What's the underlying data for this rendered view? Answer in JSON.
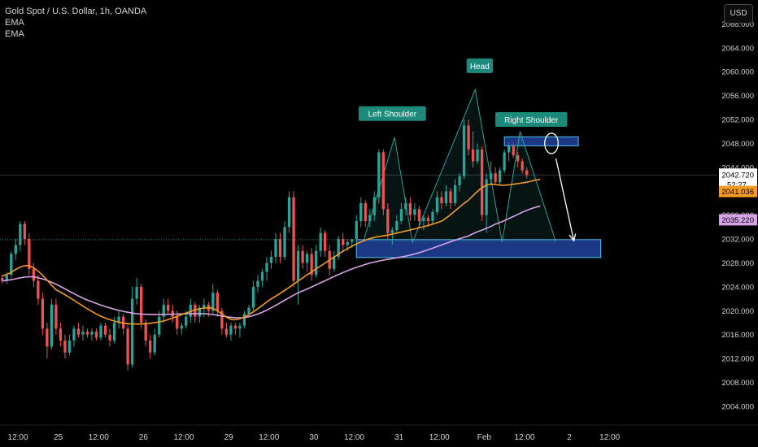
{
  "header": {
    "symbol": "Gold Spot / U.S. Dollar, 1h, OANDA",
    "indicators": [
      "EMA",
      "EMA"
    ],
    "currency_button": "USD"
  },
  "price_labels": {
    "last_price": "2042.720",
    "countdown": "52:27",
    "ema_fast": "2041.036",
    "ema_slow": "2035.220"
  },
  "colors": {
    "up": "#26a69a",
    "down": "#ef5350",
    "ema_fast": "#f59a23",
    "ema_slow": "#d7a3e6",
    "zone_fill": "#1e3a8a",
    "zone_border": "#4fc3f7",
    "pattern_line": "#26a69a",
    "label_bg": "#1b8a7a"
  },
  "chart_data": {
    "type": "candlestick",
    "y_axis": {
      "range": [
        2001,
        2072
      ],
      "ticks": [
        2004,
        2008,
        2012,
        2016,
        2020,
        2024,
        2028,
        2032,
        2036,
        2040,
        2044,
        2048,
        2052,
        2056,
        2060,
        2064,
        2068
      ],
      "tick_labels": [
        "2004.000",
        "2008.000",
        "2012.000",
        "2016.000",
        "2020.000",
        "2024.000",
        "2028.000",
        "2032.000",
        "2036.000",
        "2040.000",
        "2044.000",
        "2048.000",
        "2052.000",
        "2056.000",
        "2060.000",
        "2064.000",
        "2068.000"
      ]
    },
    "x_axis": {
      "range": [
        0,
        160
      ],
      "tick_labels": [
        {
          "x": 4,
          "label": "12:00"
        },
        {
          "x": 13,
          "label": "25"
        },
        {
          "x": 22,
          "label": "12:00"
        },
        {
          "x": 32,
          "label": "26"
        },
        {
          "x": 41,
          "label": "12:00"
        },
        {
          "x": 51,
          "label": "29"
        },
        {
          "x": 60,
          "label": "12:00"
        },
        {
          "x": 70,
          "label": "30"
        },
        {
          "x": 79,
          "label": "12:00"
        },
        {
          "x": 89,
          "label": "31"
        },
        {
          "x": 98,
          "label": "12:00"
        },
        {
          "x": 108,
          "label": "Feb"
        },
        {
          "x": 117,
          "label": "12:00"
        },
        {
          "x": 127,
          "label": "2"
        },
        {
          "x": 136,
          "label": "12:00"
        }
      ]
    },
    "candles": [
      [
        2025.5,
        2026,
        2024.5,
        2025
      ],
      [
        2025,
        2026.5,
        2024.5,
        2026
      ],
      [
        2026,
        2030,
        2025.5,
        2029.5
      ],
      [
        2029.5,
        2032,
        2028.5,
        2031
      ],
      [
        2031,
        2035,
        2030,
        2034.5
      ],
      [
        2034.5,
        2035,
        2031,
        2032
      ],
      [
        2032,
        2033,
        2026,
        2027
      ],
      [
        2027,
        2028,
        2024,
        2025
      ],
      [
        2025,
        2026,
        2021,
        2022
      ],
      [
        2022,
        2023,
        2016,
        2017
      ],
      [
        2017,
        2018,
        2012,
        2014
      ],
      [
        2014,
        2022,
        2013.5,
        2021
      ],
      [
        2021,
        2022,
        2016,
        2017
      ],
      [
        2017,
        2018,
        2014,
        2015
      ],
      [
        2015,
        2016,
        2012,
        2013
      ],
      [
        2013,
        2016,
        2012.5,
        2015
      ],
      [
        2015,
        2017.5,
        2014,
        2017
      ],
      [
        2017,
        2018,
        2015.5,
        2016
      ],
      [
        2016,
        2017.5,
        2015,
        2016.5
      ],
      [
        2016.5,
        2017,
        2015.5,
        2016
      ],
      [
        2016,
        2017,
        2015,
        2016.5
      ],
      [
        2016.5,
        2017,
        2015,
        2015.5
      ],
      [
        2015.5,
        2018,
        2015,
        2017.5
      ],
      [
        2017.5,
        2018,
        2015.5,
        2016
      ],
      [
        2016,
        2017,
        2014,
        2015
      ],
      [
        2015,
        2019,
        2014.5,
        2018
      ],
      [
        2018,
        2020,
        2017,
        2019
      ],
      [
        2019,
        2019.5,
        2016,
        2017
      ],
      [
        2017,
        2018,
        2010,
        2011
      ],
      [
        2011,
        2024,
        2010.5,
        2022
      ],
      [
        2022,
        2025.5,
        2021,
        2024
      ],
      [
        2024,
        2024.5,
        2017,
        2018
      ],
      [
        2018,
        2018.5,
        2014,
        2015
      ],
      [
        2015,
        2016,
        2012,
        2013
      ],
      [
        2013,
        2017,
        2012.5,
        2016
      ],
      [
        2016,
        2020,
        2015.5,
        2019
      ],
      [
        2019,
        2022,
        2018,
        2021
      ],
      [
        2021,
        2022,
        2019.5,
        2020
      ],
      [
        2020,
        2021,
        2018,
        2019
      ],
      [
        2019,
        2020,
        2016,
        2017
      ],
      [
        2017,
        2018,
        2016,
        2017.5
      ],
      [
        2017.5,
        2020,
        2017,
        2019
      ],
      [
        2019,
        2022,
        2018,
        2021
      ],
      [
        2021,
        2021.5,
        2018,
        2019
      ],
      [
        2019,
        2021,
        2018,
        2020.5
      ],
      [
        2020.5,
        2022,
        2019,
        2021
      ],
      [
        2021,
        2021.5,
        2019,
        2020
      ],
      [
        2020,
        2024.5,
        2019.5,
        2023
      ],
      [
        2023,
        2023.5,
        2019,
        2020
      ],
      [
        2020,
        2020.5,
        2016,
        2017
      ],
      [
        2017,
        2018,
        2015.5,
        2016
      ],
      [
        2016,
        2018,
        2015,
        2017.5
      ],
      [
        2017.5,
        2018,
        2016,
        2017
      ],
      [
        2017,
        2018,
        2015.5,
        2017.5
      ],
      [
        2017.5,
        2020,
        2017,
        2019.5
      ],
      [
        2019.5,
        2021,
        2019,
        2020.5
      ],
      [
        2020.5,
        2025,
        2020,
        2024
      ],
      [
        2024,
        2026,
        2023,
        2025
      ],
      [
        2025,
        2027,
        2024,
        2026.5
      ],
      [
        2026.5,
        2029,
        2025,
        2028
      ],
      [
        2028,
        2030,
        2027,
        2029
      ],
      [
        2029,
        2033,
        2028,
        2032
      ],
      [
        2032,
        2033,
        2028,
        2029
      ],
      [
        2029,
        2035,
        2028.5,
        2034
      ],
      [
        2034,
        2040,
        2033,
        2039
      ],
      [
        2039,
        2040,
        2024,
        2025
      ],
      [
        2025,
        2031,
        2021,
        2030
      ],
      [
        2030,
        2031,
        2027,
        2028
      ],
      [
        2028,
        2030,
        2026.5,
        2029.5
      ],
      [
        2029.5,
        2030.5,
        2025,
        2026
      ],
      [
        2026,
        2031,
        2025.5,
        2030
      ],
      [
        2030,
        2034,
        2029,
        2033
      ],
      [
        2033,
        2033.5,
        2029,
        2030
      ],
      [
        2030,
        2031,
        2026,
        2027
      ],
      [
        2027,
        2030,
        2026.5,
        2029
      ],
      [
        2029,
        2032.5,
        2028.5,
        2032
      ],
      [
        2032,
        2033,
        2030,
        2031
      ],
      [
        2031,
        2032,
        2030,
        2031.5
      ],
      [
        2031.5,
        2032,
        2030.5,
        2032
      ],
      [
        2032,
        2036,
        2031.5,
        2035
      ],
      [
        2035,
        2039,
        2034,
        2038
      ],
      [
        2038,
        2038.5,
        2034,
        2035
      ],
      [
        2035,
        2037,
        2034,
        2036
      ],
      [
        2036,
        2040,
        2035,
        2039
      ],
      [
        2039,
        2047,
        2038,
        2046.5
      ],
      [
        2046.5,
        2047,
        2036,
        2037
      ],
      [
        2037,
        2038,
        2032,
        2033
      ],
      [
        2033,
        2034,
        2031,
        2033.5
      ],
      [
        2033.5,
        2036,
        2033,
        2035
      ],
      [
        2035,
        2038,
        2034.5,
        2037
      ],
      [
        2037,
        2039,
        2036,
        2038
      ],
      [
        2038,
        2039,
        2035,
        2036
      ],
      [
        2036,
        2038,
        2035,
        2037
      ],
      [
        2037,
        2037.5,
        2034,
        2035
      ],
      [
        2035,
        2036,
        2033.5,
        2035.5
      ],
      [
        2035.5,
        2036,
        2034,
        2035
      ],
      [
        2035,
        2037,
        2034.5,
        2036.5
      ],
      [
        2036.5,
        2040,
        2036,
        2039
      ],
      [
        2039,
        2040,
        2037,
        2038
      ],
      [
        2038,
        2041,
        2037.5,
        2040
      ],
      [
        2040,
        2040.5,
        2037,
        2038
      ],
      [
        2038,
        2042,
        2037.5,
        2041
      ],
      [
        2041,
        2043,
        2040,
        2042.5
      ],
      [
        2042.5,
        2052,
        2042,
        2051
      ],
      [
        2051,
        2052,
        2046,
        2047
      ],
      [
        2047,
        2050,
        2044,
        2045
      ],
      [
        2045,
        2048,
        2044.5,
        2047
      ],
      [
        2047,
        2047.5,
        2035,
        2036
      ],
      [
        2036,
        2043,
        2033,
        2042
      ],
      [
        2042,
        2045,
        2041,
        2043
      ],
      [
        2043,
        2044,
        2041,
        2041.5
      ],
      [
        2041.5,
        2044,
        2041,
        2043.5
      ],
      [
        2043.5,
        2047,
        2043,
        2046.5
      ],
      [
        2046.5,
        2048,
        2045,
        2047.5
      ],
      [
        2047.5,
        2048,
        2045.5,
        2046
      ],
      [
        2046,
        2046.5,
        2044,
        2045
      ],
      [
        2045,
        2045.5,
        2043,
        2043.5
      ],
      [
        2043.5,
        2044,
        2042.2,
        2042.7
      ]
    ],
    "ema_fast_anchors": [
      [
        0,
        2025.8
      ],
      [
        6,
        2027.5
      ],
      [
        12,
        2023.5
      ],
      [
        24,
        2018.5
      ],
      [
        34,
        2018
      ],
      [
        46,
        2020.5
      ],
      [
        52,
        2018.5
      ],
      [
        60,
        2022
      ],
      [
        70,
        2027
      ],
      [
        80,
        2031.5
      ],
      [
        88,
        2033
      ],
      [
        98,
        2035
      ],
      [
        104,
        2038.5
      ],
      [
        108,
        2041
      ],
      [
        112,
        2041
      ],
      [
        117,
        2041.5
      ],
      [
        120,
        2042
      ]
    ],
    "ema_slow_anchors": [
      [
        0,
        2025
      ],
      [
        8,
        2025.5
      ],
      [
        20,
        2021.5
      ],
      [
        30,
        2019.5
      ],
      [
        45,
        2019.5
      ],
      [
        55,
        2019
      ],
      [
        66,
        2023
      ],
      [
        80,
        2027.5
      ],
      [
        92,
        2029.5
      ],
      [
        104,
        2032.5
      ],
      [
        110,
        2034.5
      ],
      [
        120,
        2037.5
      ]
    ],
    "zones": [
      {
        "x1": 79.5,
        "x2": 134,
        "y1": 2028.9,
        "y2": 2031.9
      },
      {
        "x1": 112.5,
        "x2": 129,
        "y1": 2047.6,
        "y2": 2049.1
      }
    ],
    "pattern": {
      "points": [
        [
          81,
          2031.5
        ],
        [
          88,
          2049
        ],
        [
          92,
          2031.5
        ],
        [
          106,
          2057
        ],
        [
          112,
          2031.5
        ],
        [
          116,
          2050
        ],
        [
          124,
          2031.5
        ]
      ],
      "labels": [
        {
          "text": "Left Shoulder",
          "x": 87.5,
          "y": 2053
        },
        {
          "text": "Head",
          "x": 107,
          "y": 2061
        },
        {
          "text": "Right Shoulder",
          "x": 118.5,
          "y": 2052
        }
      ]
    },
    "arrow": {
      "from": [
        124,
        2045.5
      ],
      "to": [
        128,
        2031.7
      ]
    },
    "circle": {
      "x": 123,
      "y": 2048,
      "rx": 1.5,
      "ry": 1.7
    },
    "price_lines": {
      "last": 2042.72,
      "dotted": 2031.9
    }
  }
}
